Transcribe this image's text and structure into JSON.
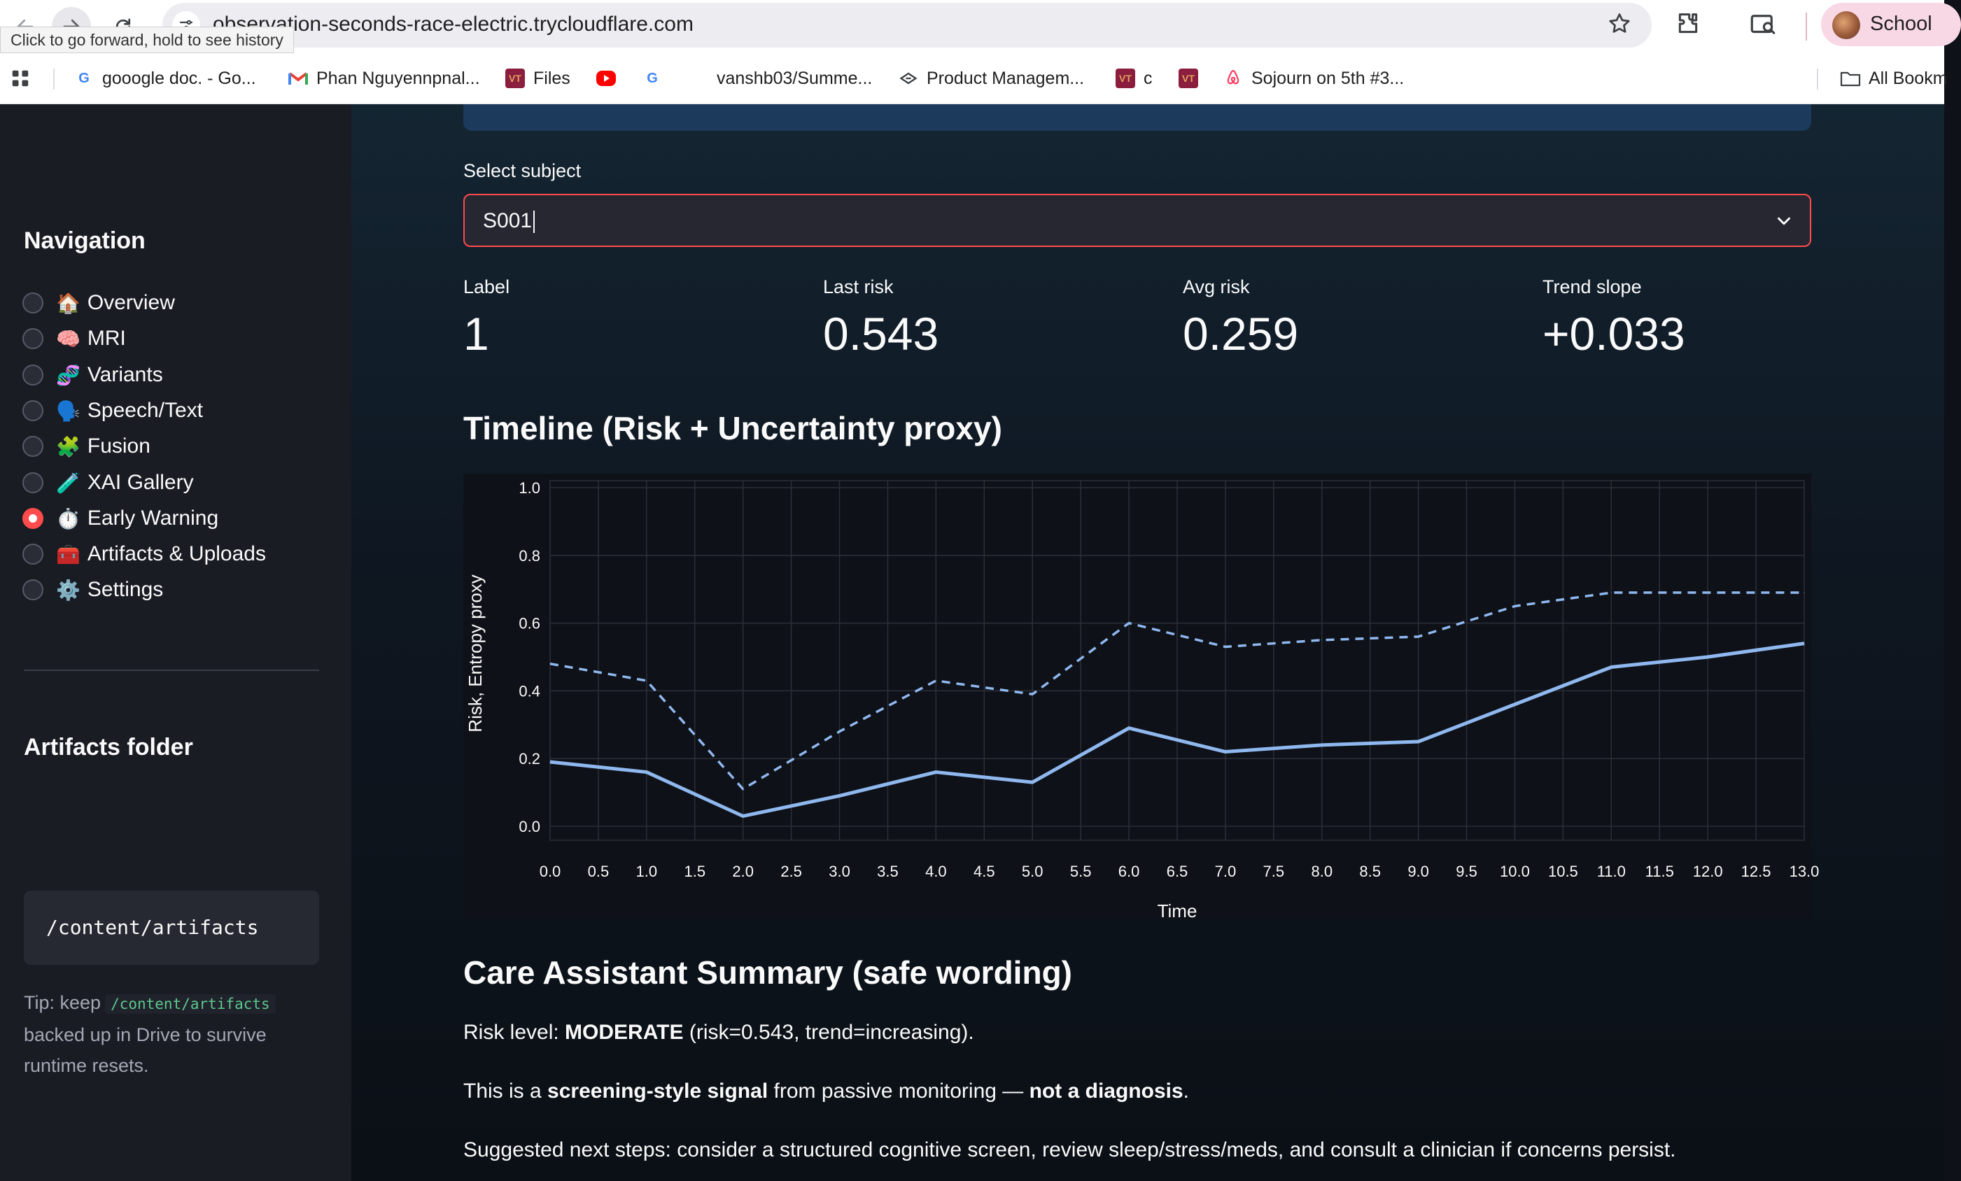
{
  "browser": {
    "url": "observation-seconds-race-electric.trycloudflare.com",
    "tooltip": "Click to go forward, hold to see history",
    "profile_label": "School",
    "bookmarks": [
      {
        "label": "gooogle doc. - Go...",
        "icon": "google-icon"
      },
      {
        "label": "Phan Nguyennpnal...",
        "icon": "gmail-icon"
      },
      {
        "label": "Files",
        "icon": "vt-icon"
      },
      {
        "label": "",
        "icon": "youtube-icon"
      },
      {
        "label": "",
        "icon": "google-icon"
      },
      {
        "label": "vanshb03/Summe...",
        "icon": "github-icon"
      },
      {
        "label": "Product Managem...",
        "icon": "pm-icon"
      },
      {
        "label": "c",
        "icon": "vt-icon"
      },
      {
        "label": "",
        "icon": "vt-icon"
      },
      {
        "label": "Sojourn on 5th #3...",
        "icon": "airbnb-icon"
      }
    ],
    "all_bookmarks_label": "All Bookm"
  },
  "sidebar": {
    "nav_heading": "Navigation",
    "nav_items": [
      {
        "emoji": "🏠",
        "label": "Overview",
        "selected": false
      },
      {
        "emoji": "🧠",
        "label": "MRI",
        "selected": false
      },
      {
        "emoji": "🧬",
        "label": "Variants",
        "selected": false
      },
      {
        "emoji": "🗣️",
        "label": "Speech/Text",
        "selected": false
      },
      {
        "emoji": "🧩",
        "label": "Fusion",
        "selected": false
      },
      {
        "emoji": "🧪",
        "label": "XAI Gallery",
        "selected": false
      },
      {
        "emoji": "⏱️",
        "label": "Early Warning",
        "selected": true
      },
      {
        "emoji": "🧰",
        "label": "Artifacts & Uploads",
        "selected": false
      },
      {
        "emoji": "⚙️",
        "label": "Settings",
        "selected": false
      }
    ],
    "artifacts_heading": "Artifacts folder",
    "artifacts_path": "/content/artifacts",
    "tip_prefix": "Tip: keep",
    "tip_code": "/content/artifacts",
    "tip_suffix": "backed up in Drive to survive runtime resets."
  },
  "main": {
    "select_label": "Select subject",
    "select_value": "S001",
    "metrics": [
      {
        "label": "Label",
        "value": "1"
      },
      {
        "label": "Last risk",
        "value": "0.543"
      },
      {
        "label": "Avg risk",
        "value": "0.259"
      },
      {
        "label": "Trend slope",
        "value": "+0.033"
      }
    ],
    "timeline_title": "Timeline (Risk + Uncertainty proxy)",
    "summary_title": "Care Assistant Summary (safe wording)",
    "summary": {
      "p1_prefix": "Risk level: ",
      "p1_bold": "MODERATE",
      "p1_suffix": " (risk=0.543, trend=increasing).",
      "p2_prefix": "This is a ",
      "p2_bold1": "screening-style signal",
      "p2_mid": " from passive monitoring — ",
      "p2_bold2": "not a diagnosis",
      "p2_suffix": ".",
      "p3": "Suggested next steps: consider a structured cognitive screen, review sleep/stress/meds, and consult a clinician if concerns persist."
    }
  },
  "chart_data": {
    "type": "line",
    "title": "Timeline (Risk + Uncertainty proxy)",
    "xlabel": "Time",
    "ylabel": "Risk, Entropy proxy",
    "x": [
      0,
      1,
      2,
      3,
      4,
      5,
      6,
      7,
      8,
      9,
      10,
      11,
      12,
      13
    ],
    "xlim": [
      0,
      13
    ],
    "ylim": [
      0,
      1
    ],
    "x_ticks": [
      "0.0",
      "0.5",
      "1.0",
      "1.5",
      "2.0",
      "2.5",
      "3.0",
      "3.5",
      "4.0",
      "4.5",
      "5.0",
      "5.5",
      "6.0",
      "6.5",
      "7.0",
      "7.5",
      "8.0",
      "8.5",
      "9.0",
      "9.5",
      "10.0",
      "10.5",
      "11.0",
      "11.5",
      "12.0",
      "12.5",
      "13.0"
    ],
    "y_ticks": [
      "0.0",
      "0.2",
      "0.4",
      "0.6",
      "0.8",
      "1.0"
    ],
    "grid": true,
    "legend": "none",
    "series": [
      {
        "style": "solid",
        "color": "#8fb8ef",
        "values": [
          0.19,
          0.16,
          0.03,
          0.09,
          0.16,
          0.13,
          0.29,
          0.22,
          0.24,
          0.25,
          0.36,
          0.47,
          0.5,
          0.54
        ]
      },
      {
        "style": "dashed",
        "color": "#8fb8ef",
        "values": [
          0.48,
          0.43,
          0.11,
          0.28,
          0.43,
          0.39,
          0.6,
          0.53,
          0.55,
          0.56,
          0.65,
          0.69,
          0.69,
          0.69
        ]
      }
    ]
  }
}
